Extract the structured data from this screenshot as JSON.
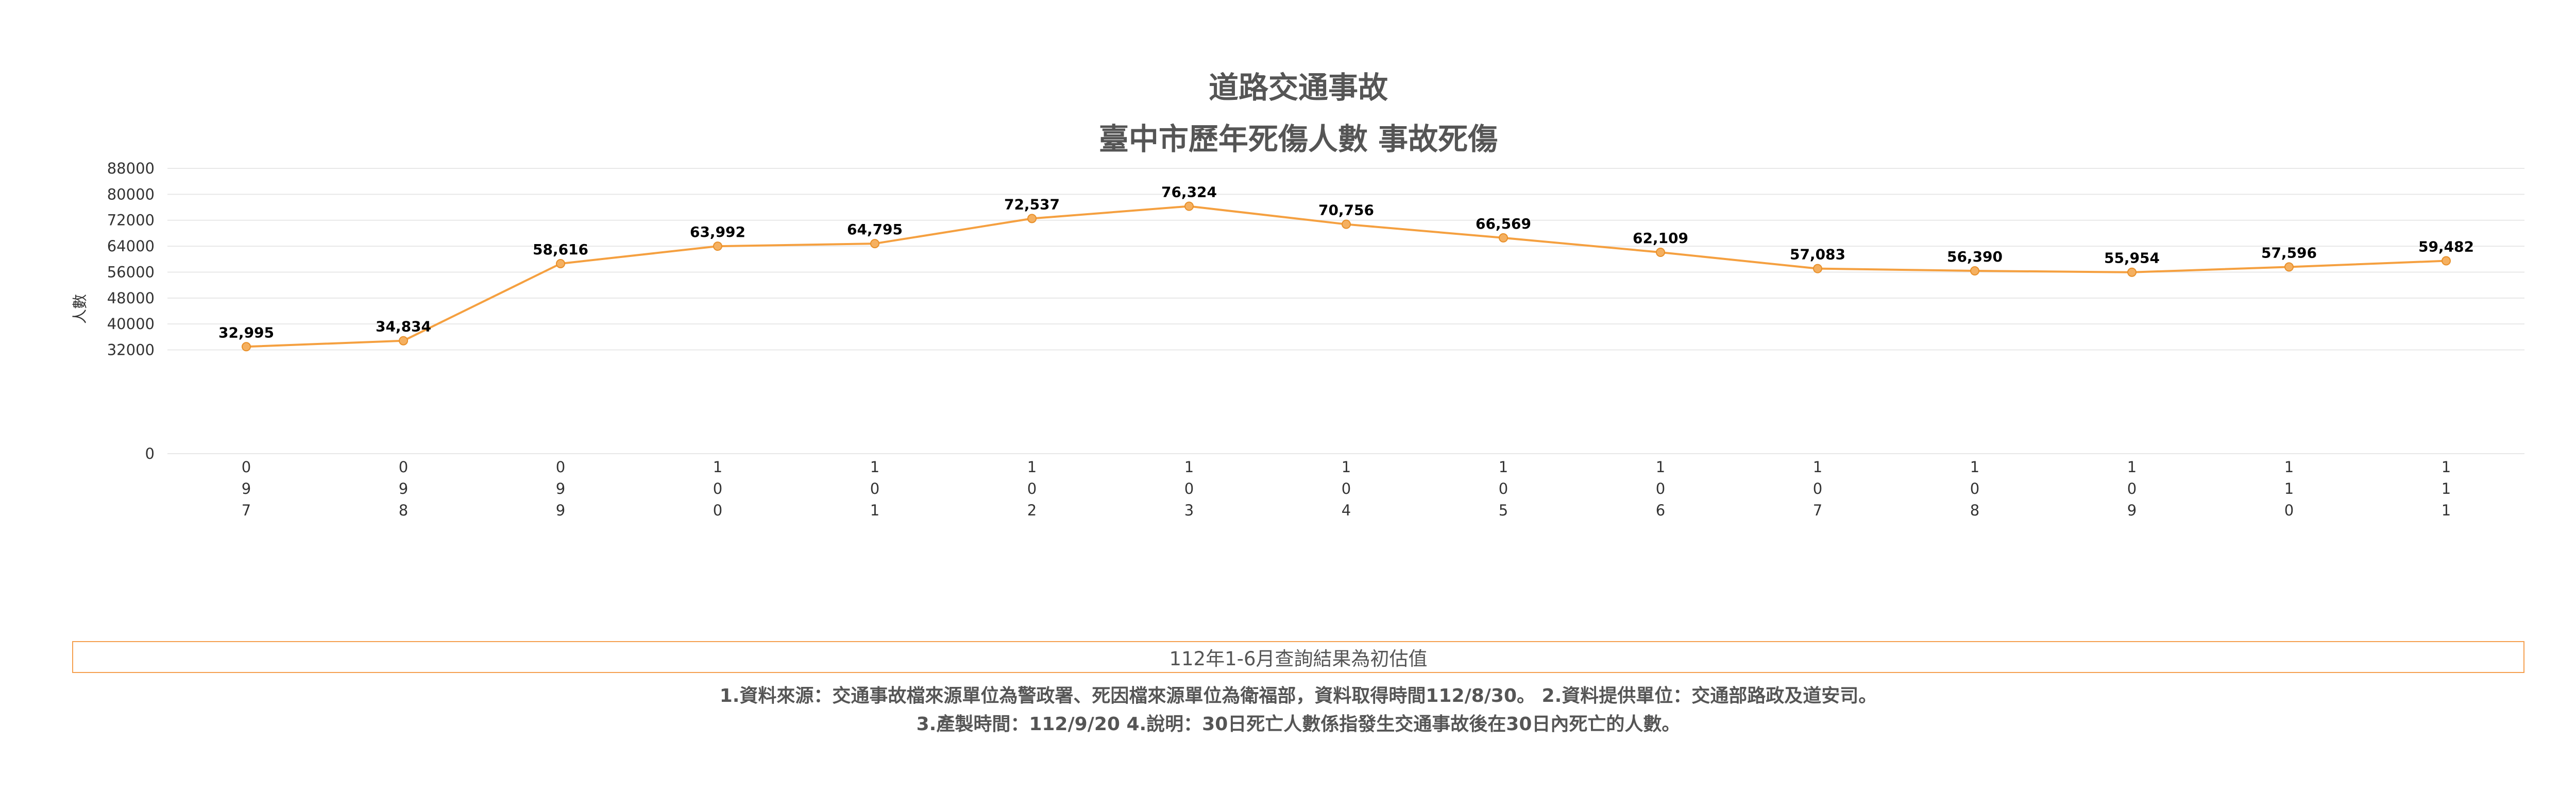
{
  "chart_data": {
    "type": "line",
    "title": [
      "道路交通事故",
      "臺中市歷年死傷人數 事故死傷"
    ],
    "ylabel": "人數",
    "xlabel": "",
    "categories": [
      "097",
      "098",
      "099",
      "100",
      "101",
      "102",
      "103",
      "104",
      "105",
      "106",
      "107",
      "108",
      "109",
      "110",
      "111"
    ],
    "series": [
      {
        "values": [
          32995,
          34834,
          58616,
          63992,
          64795,
          72537,
          76324,
          70756,
          66569,
          62109,
          57083,
          56390,
          55954,
          57596,
          59482
        ],
        "labels": [
          "32,995",
          "34,834",
          "58,616",
          "63,992",
          "64,795",
          "72,537",
          "76,324",
          "70,756",
          "66,569",
          "62,109",
          "57,083",
          "56,390",
          "55,954",
          "57,596",
          "59,482"
        ]
      }
    ],
    "ylim": [
      0,
      88000
    ],
    "yticks": [
      "88000",
      "80000",
      "72000",
      "64000",
      "56000",
      "48000",
      "40000",
      "32000",
      "0"
    ],
    "ytick_values": [
      88000,
      80000,
      72000,
      64000,
      56000,
      48000,
      40000,
      32000,
      0
    ],
    "grid": true,
    "legend": "none",
    "line_color": "#f5a040",
    "marker_fill": "#f5b060",
    "marker_stroke": "#e8902a",
    "grid_color": "#e8e8e8"
  },
  "note": "112年1-6月查詢結果為初估值",
  "footnotes": [
    "1.資料來源：交通事故檔來源單位為警政署、死因檔來源單位為衛福部，資料取得時間112/8/30。 2.資料提供單位：交通部路政及道安司。",
    "3.產製時間：112/9/20 4.說明：30日死亡人數係指發生交通事故後在30日內死亡的人數。"
  ]
}
